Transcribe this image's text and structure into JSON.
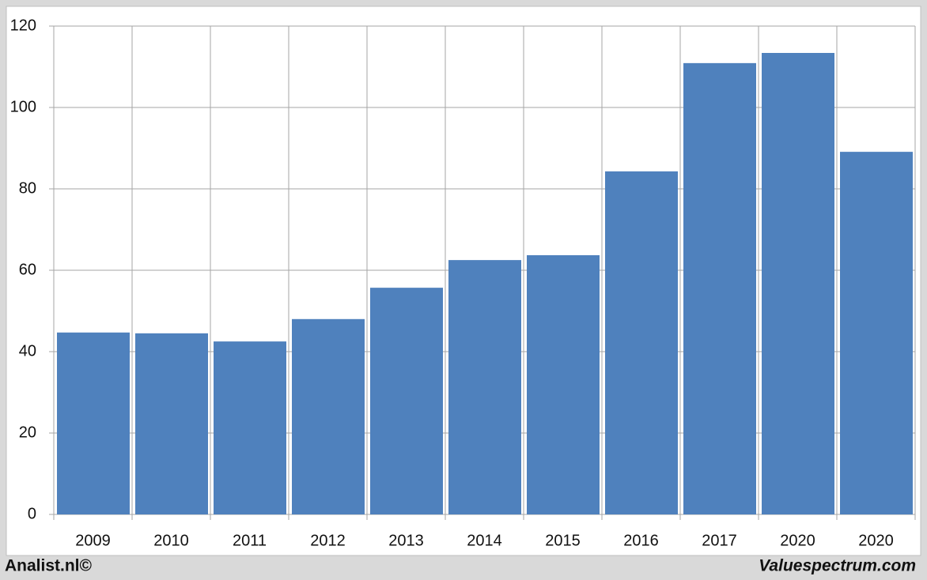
{
  "chart_data": {
    "type": "bar",
    "categories": [
      "2009",
      "2010",
      "2011",
      "2012",
      "2013",
      "2014",
      "2015",
      "2016",
      "2017",
      "2020",
      "2020"
    ],
    "values": [
      44.7,
      44.5,
      42.5,
      48,
      55.7,
      62.5,
      63.7,
      84.3,
      110.9,
      113.4,
      89.1
    ],
    "color": "#4f81bd",
    "ylim": [
      0,
      120
    ],
    "yticks": [
      0,
      20,
      40,
      60,
      80,
      100,
      120
    ],
    "grid": true
  },
  "footer": {
    "left": "Analist.nl©",
    "right": "Valuespectrum.com"
  }
}
